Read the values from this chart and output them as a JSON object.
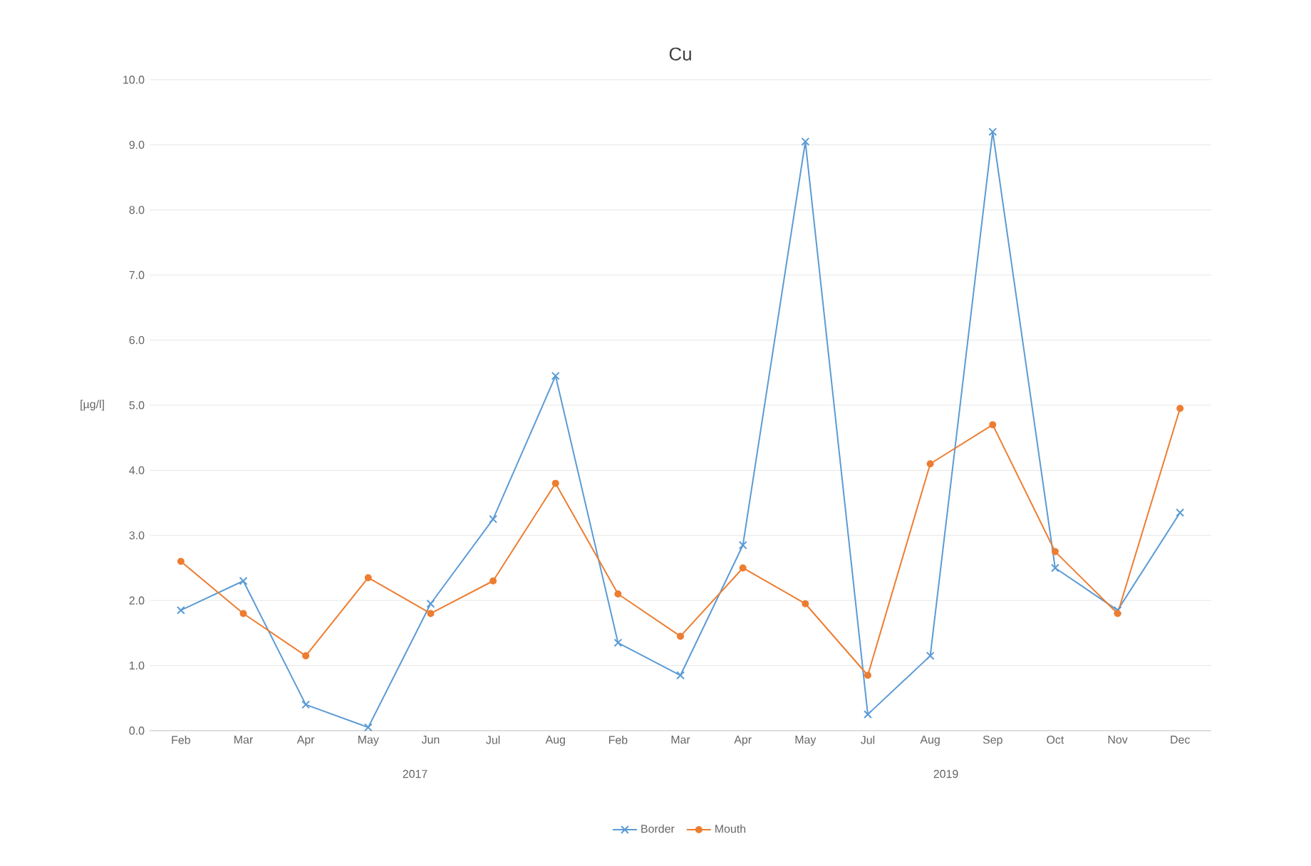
{
  "chart_data": {
    "type": "line",
    "title": "Cu",
    "ylabel": "[µg/l]",
    "categories": [
      "Feb",
      "Mar",
      "Apr",
      "May",
      "Jun",
      "Jul",
      "Aug",
      "Feb",
      "Mar",
      "Apr",
      "May",
      "Jul",
      "Aug",
      "Sep",
      "Oct",
      "Nov",
      "Dec"
    ],
    "series": [
      {
        "name": "Border",
        "color": "#5b9bd5",
        "marker": "cross",
        "values": [
          1.85,
          2.3,
          0.4,
          0.05,
          1.95,
          3.25,
          5.45,
          1.35,
          0.85,
          2.85,
          9.05,
          0.25,
          1.15,
          9.2,
          2.5,
          1.85,
          3.35
        ]
      },
      {
        "name": "Mouth",
        "color": "#ed7d31",
        "marker": "circle",
        "values": [
          2.6,
          1.8,
          1.15,
          2.35,
          1.8,
          2.3,
          3.8,
          2.1,
          1.45,
          2.5,
          1.95,
          0.85,
          4.1,
          4.7,
          2.75,
          1.8,
          4.95
        ]
      }
    ],
    "ylim": [
      0,
      10
    ],
    "yticks": [
      {
        "value": 0,
        "label": "0.0"
      },
      {
        "value": 1,
        "label": "1.0"
      },
      {
        "value": 2,
        "label": "2.0"
      },
      {
        "value": 3,
        "label": "3.0"
      },
      {
        "value": 4,
        "label": "4.0"
      },
      {
        "value": 5,
        "label": "5.0"
      },
      {
        "value": 6,
        "label": "6.0"
      },
      {
        "value": 7,
        "label": "7.0"
      },
      {
        "value": 8,
        "label": "8.0"
      },
      {
        "value": 9,
        "label": "9.0"
      },
      {
        "value": 10,
        "label": "10.0"
      }
    ],
    "annotations": [
      "2017",
      "2019"
    ],
    "grid": "y",
    "legend": "bottom",
    "line_style": "solid"
  }
}
